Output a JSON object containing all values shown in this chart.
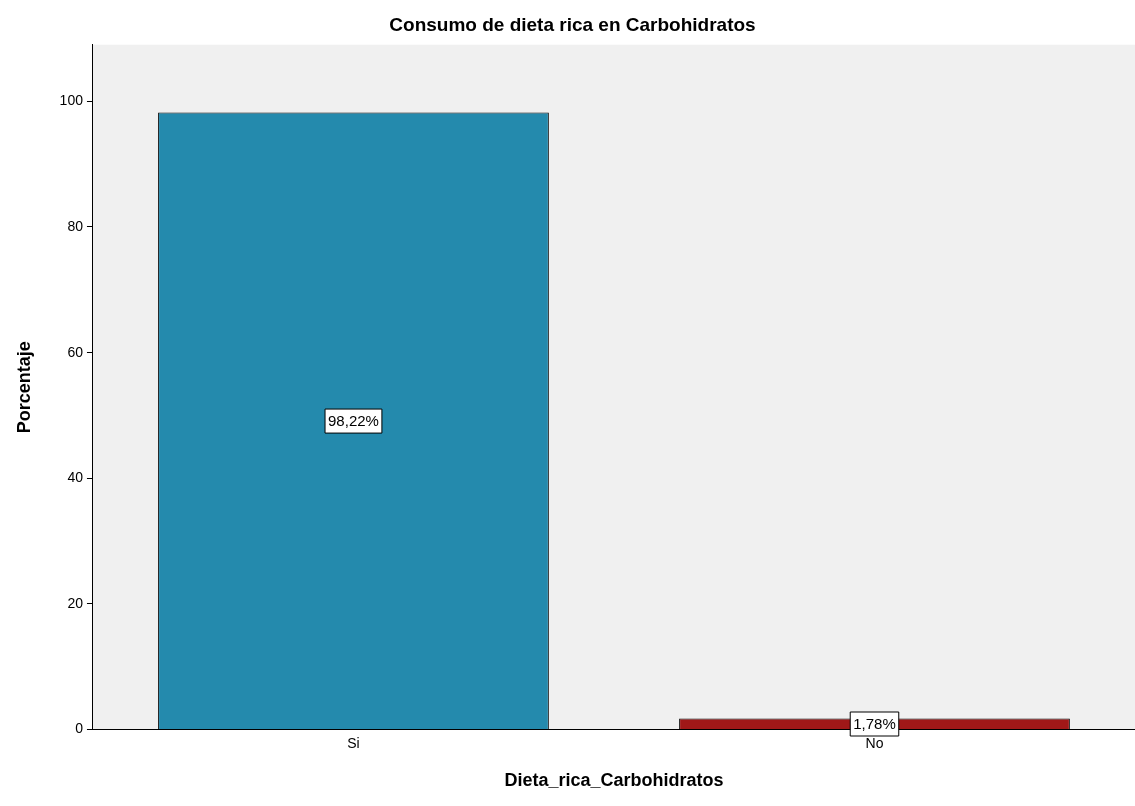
{
  "chart_data": {
    "type": "bar",
    "title": "Consumo de dieta rica en Carbohidratos",
    "xlabel": "Dieta_rica_Carbohidratos",
    "ylabel": "Porcentaje",
    "categories": [
      "Si",
      "No"
    ],
    "values": [
      98.22,
      1.78
    ],
    "colors": [
      "#248aad",
      "#a01818"
    ],
    "value_labels": [
      "98,22%",
      "1,78%"
    ],
    "ylim": [
      0,
      109
    ],
    "yticks": [
      0,
      20,
      40,
      60,
      80,
      100
    ],
    "grid": false,
    "legend": false
  }
}
